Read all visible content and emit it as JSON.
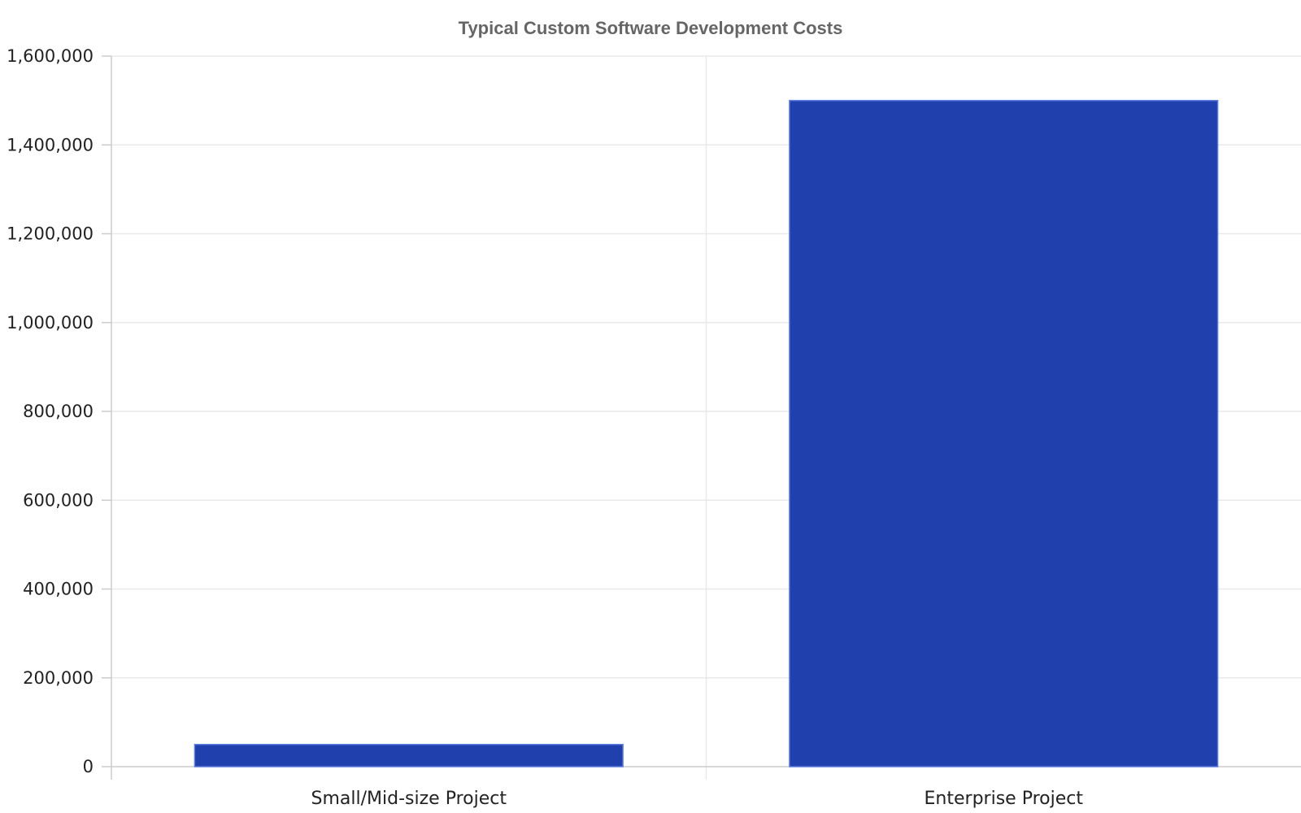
{
  "chart_data": {
    "type": "bar",
    "title": "Typical Custom Software Development Costs",
    "xlabel": "",
    "ylabel": "",
    "categories": [
      "Small/Mid-size Project",
      "Enterprise Project"
    ],
    "values": [
      50000,
      1500000
    ],
    "ylim": [
      0,
      1600000
    ],
    "y_ticks": [
      0,
      200000,
      400000,
      600000,
      800000,
      1000000,
      1200000,
      1400000,
      1600000
    ],
    "y_tick_labels": [
      "0",
      "200,000",
      "400,000",
      "600,000",
      "800,000",
      "1,000,000",
      "1,200,000",
      "1,400,000",
      "1,600,000"
    ],
    "grid": true,
    "legend": "none",
    "colors": {
      "bar_fill": "#1f40ad",
      "bar_stroke": "#5c7be0",
      "grid": "#e9e9e9",
      "axis": "#cccccc",
      "title": "#666666",
      "text": "#222222"
    }
  }
}
